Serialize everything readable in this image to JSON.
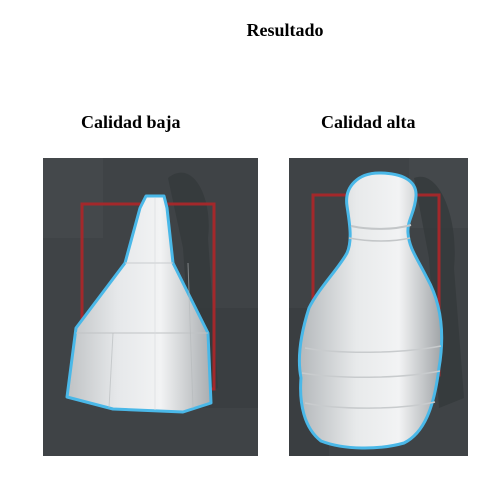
{
  "title": "Resultado",
  "panels": [
    {
      "label": "Calidad baja"
    },
    {
      "label": "Calidad alta"
    }
  ],
  "colors": {
    "background": "#3f4346",
    "outline": "#4ab8e8",
    "selection_box": "#a3282b"
  }
}
